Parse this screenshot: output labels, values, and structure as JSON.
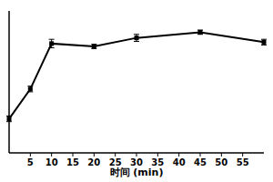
{
  "chart_data": {
    "type": "line",
    "x_label": "时间 (min)",
    "x": [
      0,
      5,
      10,
      20,
      30,
      45,
      60
    ],
    "values": [
      24,
      45,
      77,
      75,
      81,
      85,
      78
    ],
    "errors": [
      2,
      2,
      3,
      1.5,
      2.5,
      1.5,
      2
    ],
    "color": "#000000",
    "marker": "square",
    "xlim": [
      0,
      60
    ],
    "xticks": [
      5,
      10,
      15,
      20,
      25,
      30,
      35,
      40,
      45,
      50,
      55
    ],
    "ylim": [
      0,
      100
    ],
    "yticks": [],
    "tick_labels": "x",
    "grid": false
  }
}
